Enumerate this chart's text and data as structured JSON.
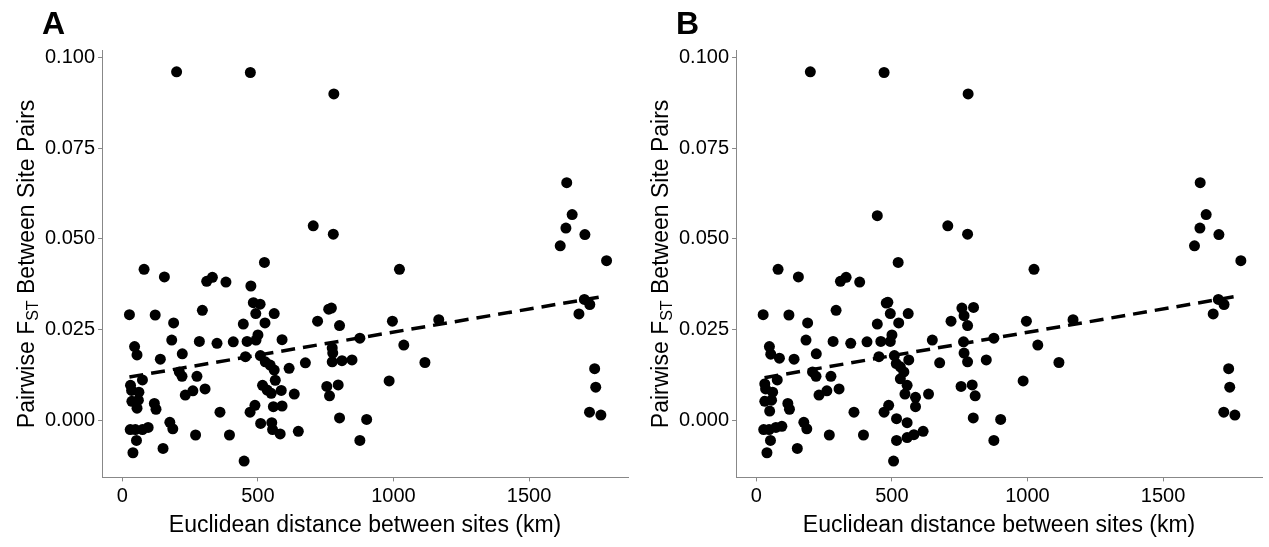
{
  "chart_data": [
    {
      "type": "scatter",
      "title": "A",
      "xlabel": "Euclidean distance between sites (km)",
      "ylabel": "Pairwise F$_{ST}$ Between Site Pairs",
      "xlim": [
        -75,
        1865
      ],
      "ylim": [
        -0.0158,
        0.102
      ],
      "xticks": [
        0,
        500,
        1000,
        1500
      ],
      "yticks": [
        {
          "value": 0,
          "label": "0.000"
        },
        {
          "value": 0.025,
          "label": "0.025"
        },
        {
          "value": 0.05,
          "label": "0.050"
        },
        {
          "value": 0.075,
          "label": "0.075"
        },
        {
          "value": 0.1,
          "label": "0.100"
        }
      ],
      "grid": false,
      "legend": false,
      "series": [
        {
          "marker": "circle",
          "color": "#000000",
          "x": [
            200,
            472,
            780,
            704,
            778,
            524,
            80,
            155,
            311,
            332,
            382,
            474,
            483,
            508,
            492,
            560,
            26,
            121,
            295,
            761,
            771,
            189,
            446,
            526,
            720,
            801,
            500,
            493,
            182,
            284,
            349,
            409,
            460,
            589,
            876,
            45,
            54,
            140,
            221,
            454,
            509,
            527,
            545,
            774,
            776,
            774,
            810,
            847,
            675,
            615,
            560,
            564,
            210,
            220,
            275,
            74,
            30,
            34,
            61,
            35,
            59,
            54,
            118,
            124,
            232,
            260,
            305,
            517,
            534,
            549,
            586,
            634,
            754,
            796,
            764,
            557,
            589,
            489,
            471,
            360,
            801,
            901,
            29,
            48,
            74,
            95,
            175,
            186,
            52,
            270,
            395,
            510,
            551,
            554,
            582,
            649,
            876,
            39,
            150,
            449,
            1639,
            1659,
            1636,
            1706,
            1615,
            1786,
            1022,
            996,
            1167,
            1038,
            1116,
            984,
            1704,
            1724,
            1684,
            1742,
            1746,
            1723,
            1765
          ],
          "values": [
            0.0961,
            0.0959,
            0.09,
            0.0536,
            0.0513,
            0.0435,
            0.0416,
            0.0395,
            0.0383,
            0.0394,
            0.0381,
            0.037,
            0.0324,
            0.032,
            0.0294,
            0.0294,
            0.0291,
            0.029,
            0.0303,
            0.0306,
            0.0309,
            0.0268,
            0.0265,
            0.0268,
            0.0273,
            0.0261,
            0.0235,
            0.0221,
            0.0221,
            0.0217,
            0.0212,
            0.0216,
            0.0217,
            0.0222,
            0.0226,
            0.0203,
            0.018,
            0.0168,
            0.0183,
            0.0175,
            0.0178,
            0.0161,
            0.0152,
            0.0199,
            0.0185,
            0.0161,
            0.0164,
            0.0166,
            0.0158,
            0.0143,
            0.0138,
            0.011,
            0.0133,
            0.0121,
            0.0121,
            0.0111,
            0.0096,
            0.0082,
            0.0077,
            0.0052,
            0.0055,
            0.0033,
            0.0046,
            0.003,
            0.0069,
            0.0081,
            0.0086,
            0.0096,
            0.0083,
            0.0074,
            0.0082,
            0.0072,
            0.0093,
            0.0097,
            0.0067,
            0.0037,
            0.0039,
            0.0041,
            0.0022,
            0.0022,
            0.0006,
            0.0002,
            -0.0026,
            -0.0026,
            -0.0026,
            -0.002,
            -0.0006,
            -0.0024,
            -0.0056,
            -0.0041,
            -0.0041,
            -0.0009,
            -0.0007,
            -0.0026,
            -0.0038,
            -0.0031,
            -0.0056,
            -0.009,
            -0.0078,
            -0.0113,
            0.0655,
            0.0567,
            0.053,
            0.0512,
            0.0481,
            0.044,
            0.0416,
            0.0273,
            0.0277,
            0.0207,
            0.0159,
            0.0108,
            0.0333,
            0.0319,
            0.0293,
            0.0142,
            0.0091,
            0.0022,
            0.0014
          ]
        },
        {
          "type": "line",
          "marker": "none",
          "color": "#000000",
          "line_style": "dashed",
          "x": [
            26,
            1764
          ],
          "values": [
            0.0119,
            0.034
          ]
        }
      ]
    },
    {
      "type": "scatter",
      "title": "B",
      "xlabel": "Euclidean distance between sites (km)",
      "ylabel": "Pairwise F$_{ST}$ Between Site Pairs",
      "xlim": [
        -75,
        1865
      ],
      "ylim": [
        -0.0158,
        0.102
      ],
      "xticks": [
        0,
        500,
        1000,
        1500
      ],
      "yticks": [
        {
          "value": 0,
          "label": "0.000"
        },
        {
          "value": 0.025,
          "label": "0.025"
        },
        {
          "value": 0.05,
          "label": "0.050"
        },
        {
          "value": 0.075,
          "label": "0.075"
        },
        {
          "value": 0.1,
          "label": "0.100"
        }
      ],
      "grid": false,
      "legend": false,
      "series": [
        {
          "marker": "circle",
          "color": "#000000",
          "x": [
            199,
            471,
            781,
            446,
            706,
            779,
            523,
            80,
            155,
            310,
            331,
            381,
            479,
            485,
            494,
            560,
            25,
            120,
            294,
            758,
            801,
            766,
            189,
            446,
            525,
            718,
            779,
            500,
            494,
            183,
            283,
            348,
            408,
            459,
            649,
            764,
            876,
            48,
            53,
            85,
            139,
            221,
            452,
            509,
            516,
            531,
            562,
            544,
            531,
            766,
            779,
            848,
            676,
            207,
            220,
            275,
            77,
            31,
            34,
            60,
            31,
            56,
            49,
            116,
            122,
            231,
            260,
            305,
            556,
            548,
            587,
            587,
            635,
            755,
            796,
            807,
            488,
            471,
            360,
            517,
            800,
            901,
            27,
            47,
            72,
            94,
            175,
            186,
            52,
            269,
            395,
            556,
            556,
            581,
            615,
            517,
            876,
            39,
            151,
            506,
            1637,
            1659,
            1636,
            1706,
            1616,
            1787,
            1024,
            996,
            1168,
            1038,
            1116,
            984,
            1704,
            1725,
            1685,
            1742,
            1746,
            1724,
            1765
          ],
          "values": [
            0.0961,
            0.0959,
            0.09,
            0.0564,
            0.0536,
            0.0513,
            0.0435,
            0.0416,
            0.0395,
            0.0383,
            0.0394,
            0.0381,
            0.0323,
            0.0325,
            0.0294,
            0.0294,
            0.0291,
            0.029,
            0.0303,
            0.0309,
            0.0311,
            0.0288,
            0.0268,
            0.0265,
            0.0268,
            0.0273,
            0.0261,
            0.0235,
            0.0217,
            0.0221,
            0.0217,
            0.0212,
            0.0216,
            0.0217,
            0.0221,
            0.0216,
            0.0226,
            0.0203,
            0.0182,
            0.0171,
            0.0168,
            0.0183,
            0.0175,
            0.0178,
            0.0156,
            0.0147,
            0.0166,
            0.0133,
            0.0114,
            0.0185,
            0.0161,
            0.0166,
            0.0158,
            0.0133,
            0.0121,
            0.0121,
            0.0111,
            0.01,
            0.0086,
            0.0077,
            0.0052,
            0.0055,
            0.0025,
            0.0046,
            0.003,
            0.0069,
            0.0081,
            0.0086,
            0.0096,
            0.0072,
            0.0063,
            0.0037,
            0.0072,
            0.0093,
            0.0097,
            0.0067,
            0.0041,
            0.0022,
            0.0022,
            0.0004,
            0.0006,
            0.0002,
            -0.0026,
            -0.0026,
            -0.002,
            -0.0017,
            -0.0006,
            -0.0024,
            -0.0056,
            -0.0041,
            -0.0041,
            -0.0007,
            -0.0048,
            -0.004,
            -0.0031,
            -0.0056,
            -0.0056,
            -0.009,
            -0.0078,
            -0.0113,
            0.0655,
            0.0567,
            0.053,
            0.0512,
            0.0481,
            0.044,
            0.0416,
            0.0273,
            0.0277,
            0.0207,
            0.0159,
            0.0108,
            0.0333,
            0.0319,
            0.0293,
            0.0142,
            0.0091,
            0.0022,
            0.0014
          ]
        },
        {
          "type": "line",
          "marker": "none",
          "color": "#000000",
          "line_style": "dashed",
          "x": [
            30,
            1766
          ],
          "values": [
            0.0117,
            0.0341
          ]
        }
      ]
    }
  ]
}
